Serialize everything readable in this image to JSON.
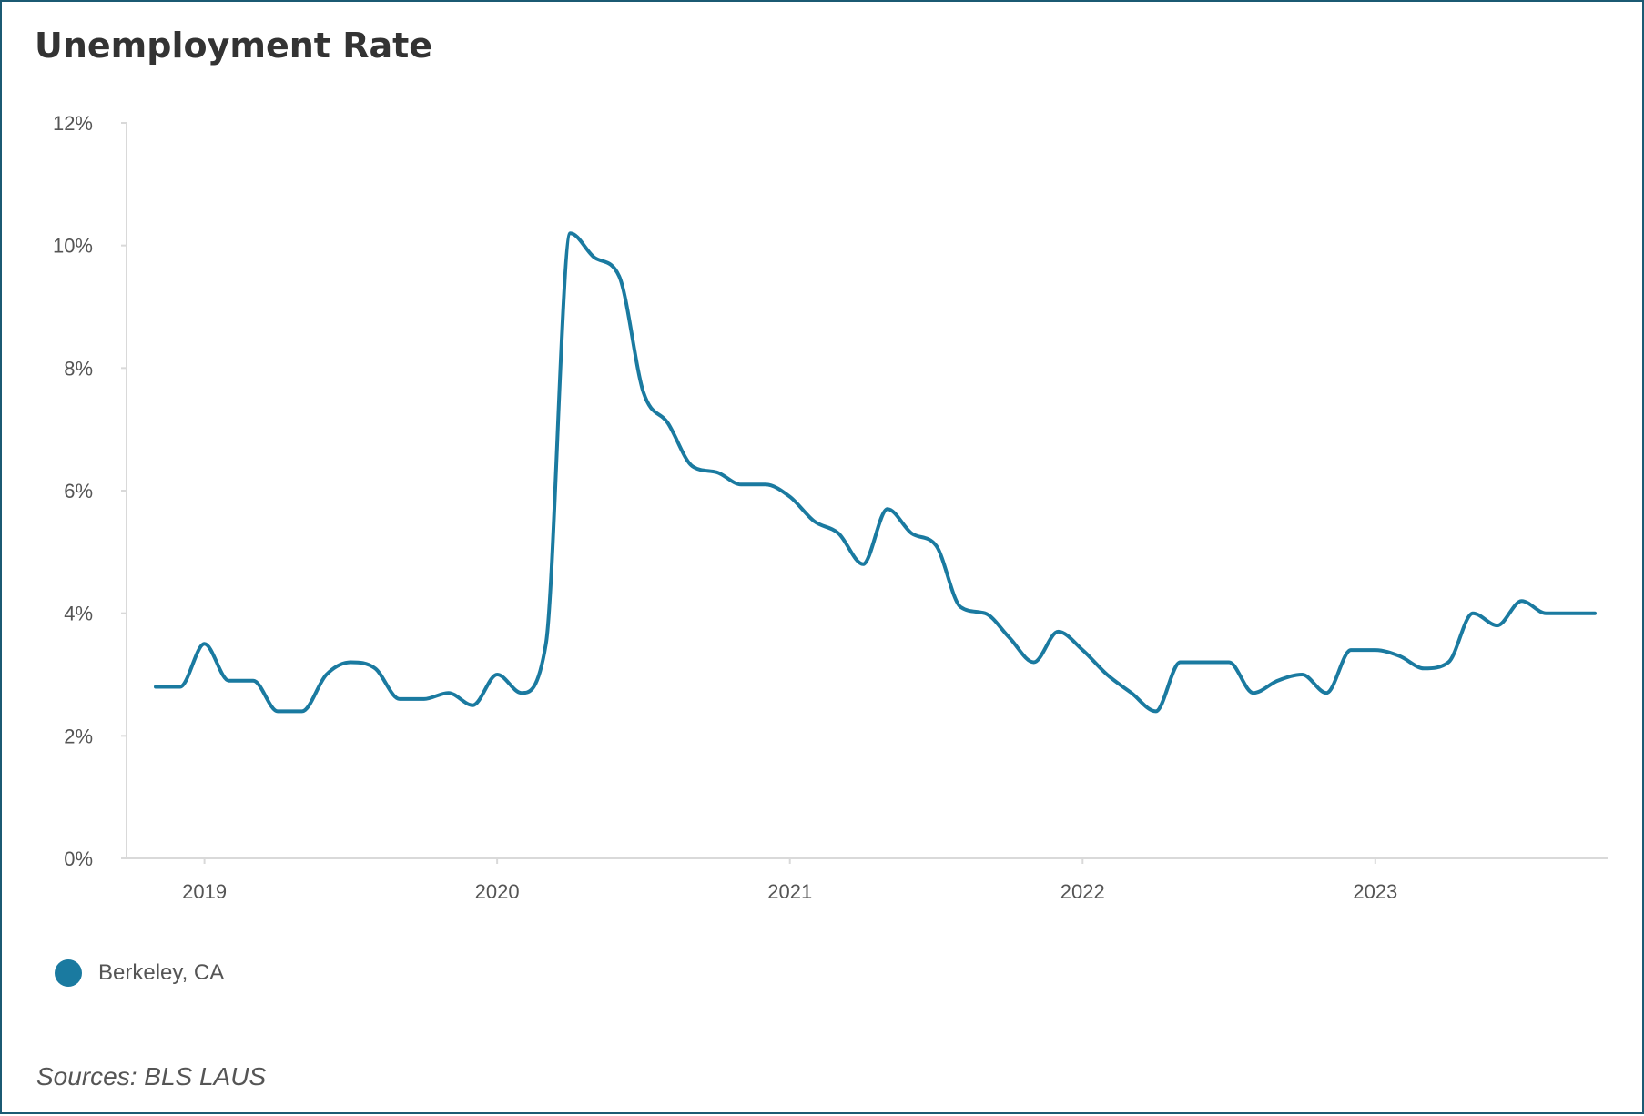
{
  "chart_data": {
    "type": "line",
    "title": "Unemployment Rate",
    "xlabel": "",
    "ylabel": "",
    "ylim": [
      0,
      12
    ],
    "yticks": [
      0,
      2,
      4,
      6,
      8,
      10,
      12
    ],
    "ytick_labels": [
      "0%",
      "2%",
      "4%",
      "6%",
      "8%",
      "10%",
      "12%"
    ],
    "xlim": [
      "2018-11",
      "2023-10"
    ],
    "xticks": [
      "2019-01",
      "2020-01",
      "2021-01",
      "2022-01",
      "2023-01"
    ],
    "xtick_labels": [
      "2019",
      "2020",
      "2021",
      "2022",
      "2023"
    ],
    "grid": false,
    "legend_position": "bottom-left",
    "colors": {
      "line": "#1a7aa0",
      "axis": "#d9d9d9"
    },
    "series": [
      {
        "name": "Berkeley, CA",
        "x": [
          "2018-11",
          "2018-12",
          "2019-01",
          "2019-02",
          "2019-03",
          "2019-04",
          "2019-05",
          "2019-06",
          "2019-07",
          "2019-08",
          "2019-09",
          "2019-10",
          "2019-11",
          "2019-12",
          "2020-01",
          "2020-02",
          "2020-03",
          "2020-04",
          "2020-05",
          "2020-06",
          "2020-07",
          "2020-08",
          "2020-09",
          "2020-10",
          "2020-11",
          "2020-12",
          "2021-01",
          "2021-02",
          "2021-03",
          "2021-04",
          "2021-05",
          "2021-06",
          "2021-07",
          "2021-08",
          "2021-09",
          "2021-10",
          "2021-11",
          "2021-12",
          "2022-01",
          "2022-02",
          "2022-03",
          "2022-04",
          "2022-05",
          "2022-06",
          "2022-07",
          "2022-08",
          "2022-09",
          "2022-10",
          "2022-11",
          "2022-12",
          "2023-01",
          "2023-02",
          "2023-03",
          "2023-04",
          "2023-05",
          "2023-06",
          "2023-07",
          "2023-08",
          "2023-09",
          "2023-10"
        ],
        "values": [
          2.8,
          2.8,
          3.5,
          2.9,
          2.9,
          2.4,
          2.4,
          3.0,
          3.2,
          3.1,
          2.6,
          2.6,
          2.7,
          2.5,
          3.0,
          2.7,
          3.5,
          10.2,
          9.8,
          9.5,
          7.6,
          7.1,
          6.4,
          6.3,
          6.1,
          6.1,
          5.9,
          5.5,
          5.3,
          4.8,
          5.7,
          5.3,
          5.1,
          4.1,
          4.0,
          3.6,
          3.2,
          3.7,
          3.4,
          3.0,
          2.7,
          2.4,
          3.2,
          3.2,
          3.2,
          2.7,
          2.9,
          3.0,
          2.7,
          3.4,
          3.4,
          3.3,
          3.1,
          3.2,
          4.0,
          3.8,
          4.2,
          4.0,
          4.0,
          4.0
        ]
      }
    ],
    "source": "Sources: BLS LAUS"
  }
}
